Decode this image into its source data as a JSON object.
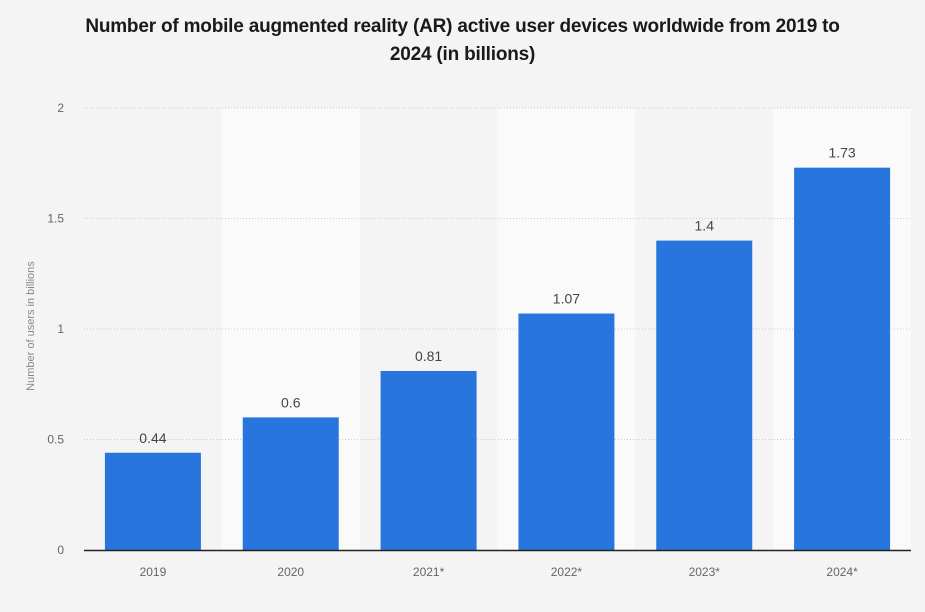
{
  "chart_data": {
    "type": "bar",
    "title": "Number of mobile augmented reality (AR) active user devices worldwide from 2019 to 2024 (in billions)",
    "title_lines": [
      "Number of mobile augmented reality (AR) active user devices worldwide from 2019 to",
      "2024 (in billions)"
    ],
    "categories": [
      "2019",
      "2020",
      "2021*",
      "2022*",
      "2023*",
      "2024*"
    ],
    "values": [
      0.44,
      0.6,
      0.81,
      1.07,
      1.4,
      1.73
    ],
    "value_labels": [
      "0.44",
      "0.6",
      "0.81",
      "1.07",
      "1.4",
      "1.73"
    ],
    "xlabel": "",
    "ylabel": "Number of users in billions",
    "ylim": [
      0,
      2
    ],
    "yticks": [
      0,
      0.5,
      1,
      1.5,
      2
    ],
    "ytick_labels": [
      "0",
      "0.5",
      "1",
      "1.5",
      "2"
    ],
    "grid": true,
    "legend": "none",
    "colors": {
      "bar": "#2876dd",
      "band_dark": "#f4f4f4",
      "band_light": "#fafafa",
      "grid": "#cccccc",
      "baseline": "#222222"
    }
  }
}
